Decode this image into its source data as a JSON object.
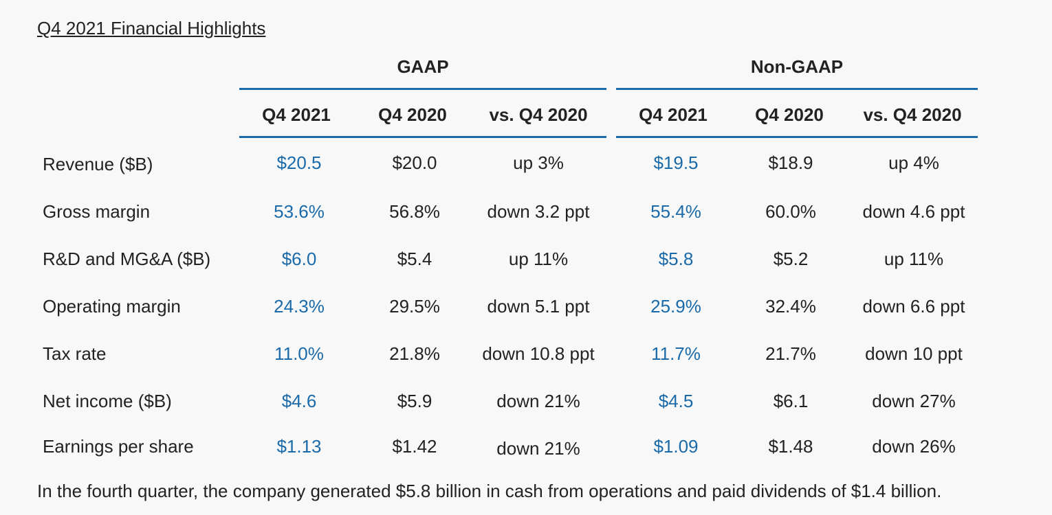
{
  "title": "Q4 2021 Financial Highlights",
  "groups": {
    "gaap": "GAAP",
    "non_gaap": "Non-GAAP"
  },
  "columns": [
    "Q4 2021",
    "Q4 2020",
    "vs. Q4 2020",
    "Q4 2021",
    "Q4 2020",
    "vs. Q4 2020"
  ],
  "rows": [
    {
      "label": "Revenue ($B)",
      "cells": [
        "$20.5",
        "$20.0",
        "up 3%",
        "$19.5",
        "$18.9",
        "up 4%"
      ]
    },
    {
      "label": "Gross margin",
      "cells": [
        "53.6%",
        "56.8%",
        "down 3.2 ppt",
        "55.4%",
        "60.0%",
        "down 4.6 ppt"
      ]
    },
    {
      "label": "R&D and MG&A ($B)",
      "cells": [
        "$6.0",
        "$5.4",
        "up 11%",
        "$5.8",
        "$5.2",
        "up 11%"
      ]
    },
    {
      "label": "Operating margin",
      "cells": [
        "24.3%",
        "29.5%",
        "down 5.1 ppt",
        "25.9%",
        "32.4%",
        "down 6.6 ppt"
      ]
    },
    {
      "label": "Tax rate",
      "cells": [
        "11.0%",
        "21.8%",
        "down 10.8 ppt",
        "11.7%",
        "21.7%",
        "down 10 ppt"
      ]
    },
    {
      "label": "Net income ($B)",
      "cells": [
        "$4.6",
        "$5.9",
        "down 21%",
        "$4.5",
        "$6.1",
        "down 27%"
      ]
    },
    {
      "label": "Earnings per share",
      "cells": [
        "$1.13",
        "$1.42",
        "down 21%",
        "$1.09",
        "$1.48",
        "down 26%"
      ]
    }
  ],
  "footer": "In the fourth quarter, the company generated $5.8 billion in cash from operations and paid dividends of $1.4 billion.",
  "colors": {
    "accent": "#1a6aa9",
    "text": "#222222",
    "background": "#f8f8f8"
  }
}
